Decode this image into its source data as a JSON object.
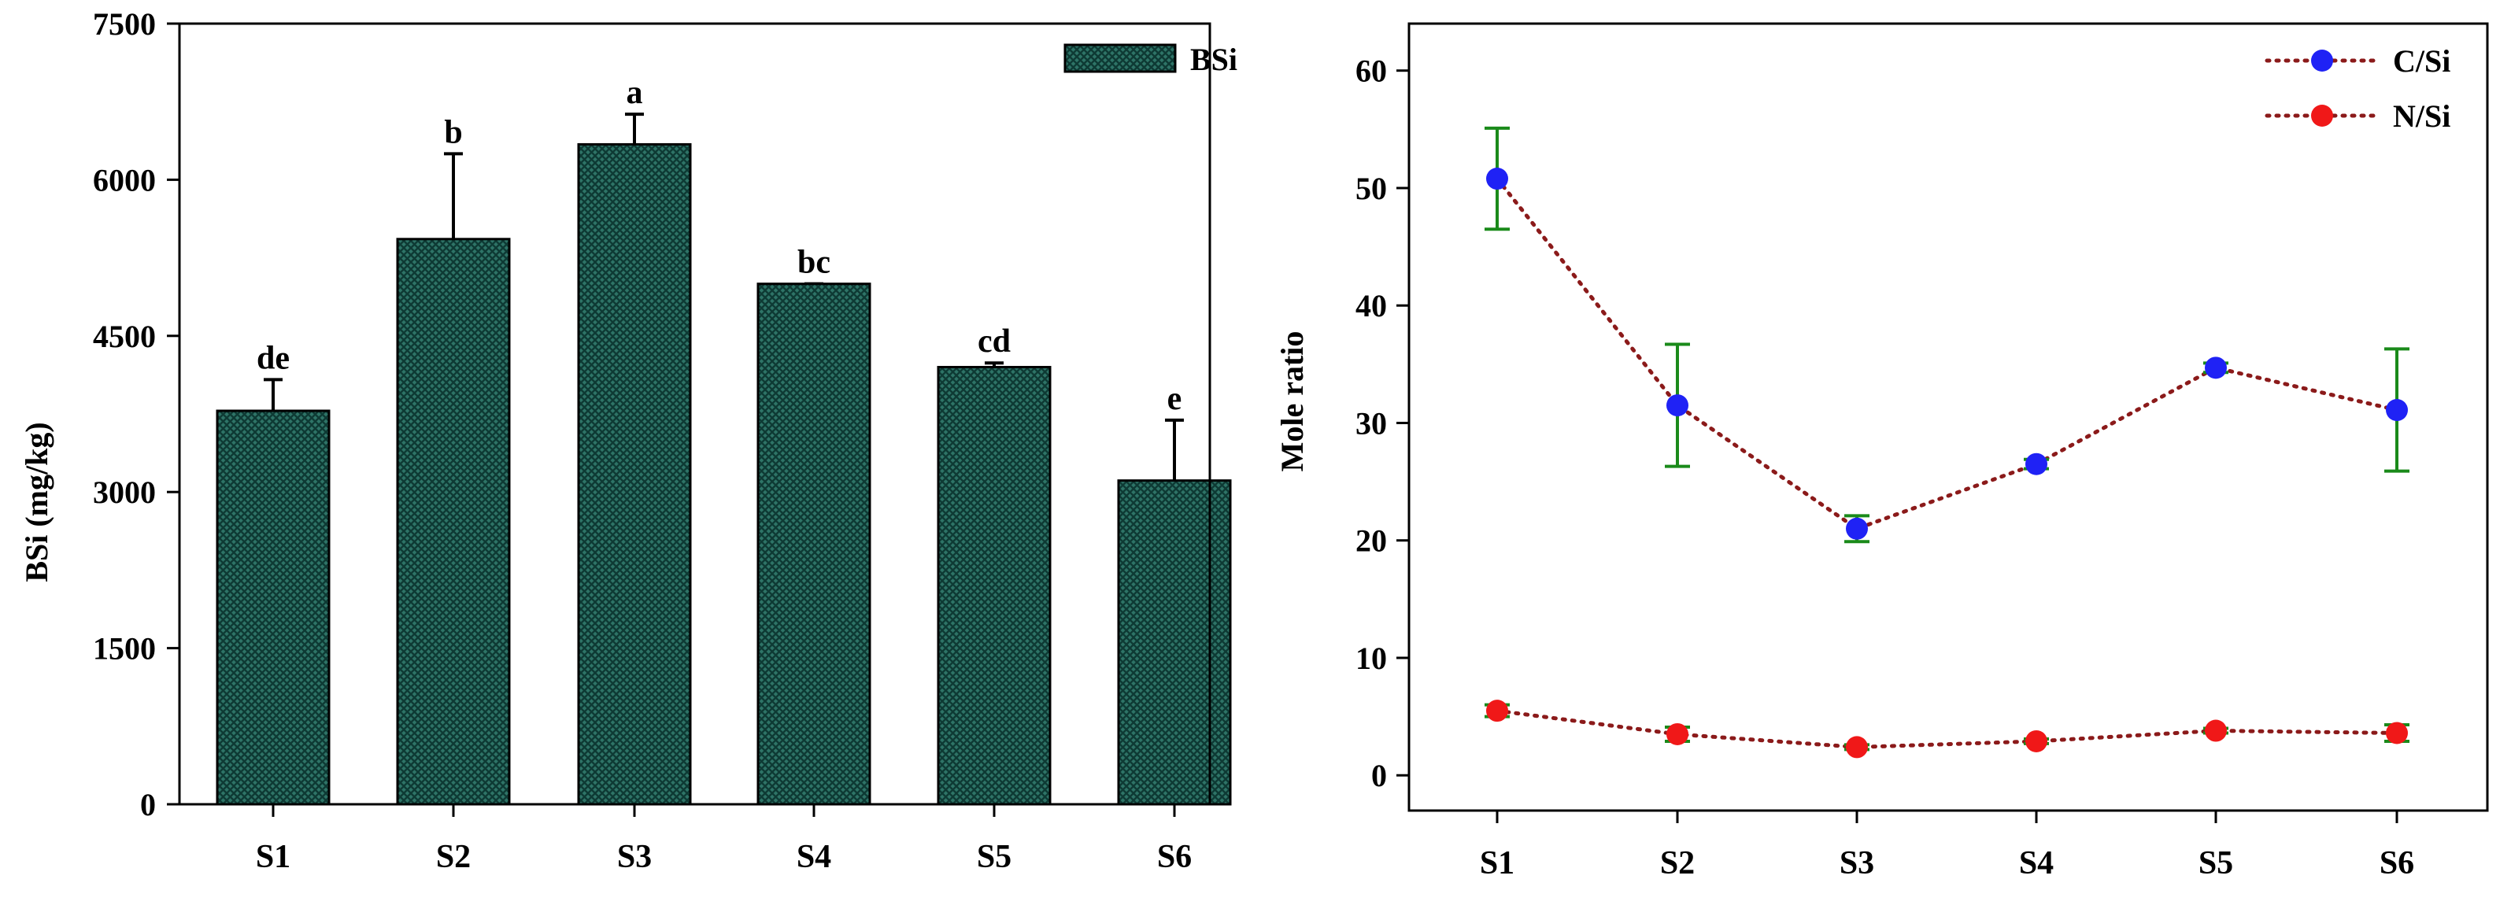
{
  "chart_data": [
    {
      "type": "bar",
      "categories": [
        "S1",
        "S2",
        "S3",
        "S4",
        "S5",
        "S6"
      ],
      "series": [
        {
          "name": "BSi",
          "values": [
            3780,
            5430,
            6340,
            5000,
            4200,
            3110
          ],
          "errors": [
            300,
            820,
            290,
            0,
            40,
            580
          ],
          "letters": [
            "de",
            "b",
            "a",
            "bc",
            "cd",
            "e"
          ]
        }
      ],
      "title": "",
      "xlabel": "",
      "ylabel": "BSi (mg/kg)",
      "ylim": [
        0,
        7500
      ],
      "yticks": [
        0,
        1500,
        3000,
        4500,
        6000,
        7500
      ],
      "legend": "top-right",
      "grid": false,
      "colors": {
        "bar_fill": "#2e7467",
        "bar_pattern": "#0e3a34",
        "bar_edge": "#000000",
        "error": "#000000"
      }
    },
    {
      "type": "line",
      "categories": [
        "S1",
        "S2",
        "S3",
        "S4",
        "S5",
        "S6"
      ],
      "series": [
        {
          "name": "C/Si",
          "values": [
            50.8,
            31.5,
            21.0,
            26.5,
            34.7,
            31.1
          ],
          "errors": [
            4.3,
            5.2,
            1.1,
            0.4,
            0.4,
            5.2
          ],
          "color": "#1f22f5",
          "line_color": "#8b1a1a",
          "error_color": "#1a8a1a"
        },
        {
          "name": "N/Si",
          "values": [
            5.5,
            3.5,
            2.4,
            2.9,
            3.8,
            3.6
          ],
          "errors": [
            0.5,
            0.6,
            0.2,
            0.2,
            0.2,
            0.7
          ],
          "color": "#f01818",
          "line_color": "#8b1a1a",
          "error_color": "#1a8a1a"
        }
      ],
      "title": "",
      "xlabel": "",
      "ylabel": "Mole ratio",
      "ylim": [
        -3,
        64
      ],
      "yticks": [
        0,
        10,
        20,
        30,
        40,
        50,
        60
      ],
      "legend": "top-right",
      "grid": false
    }
  ]
}
